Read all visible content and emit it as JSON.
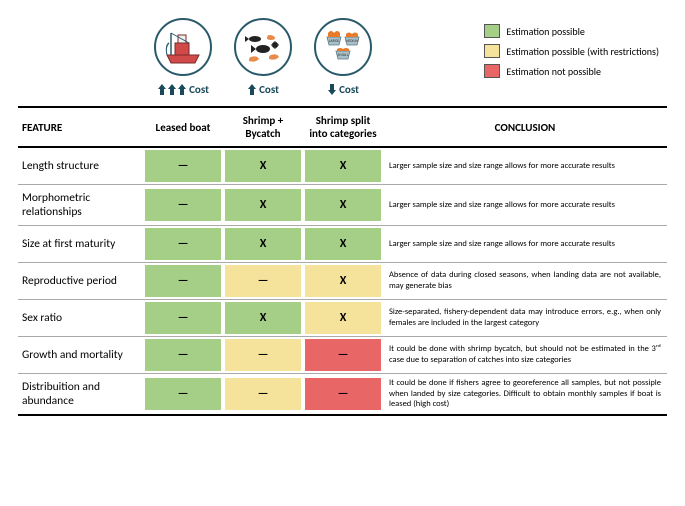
{
  "colors": {
    "green": "#a5cf86",
    "yellow": "#f6e39b",
    "red": "#e86666",
    "border": "#000000",
    "row_border": "#aaaaaa",
    "circle_border": "#2a5a6a",
    "arrow_color": "#1a4a5a",
    "boat_red": "#d14a4a",
    "shrimp_orange": "#e88a4a",
    "bycatch_black": "#222222",
    "basket_orange": "#e87a2a",
    "basket_gray": "#a9c0c8"
  },
  "legend": [
    {
      "label": "Estimation possible",
      "color": "#a5cf86"
    },
    {
      "label": "Estimation possible (with restrictions)",
      "color": "#f6e39b"
    },
    {
      "label": "Estimation not possible",
      "color": "#e86666"
    }
  ],
  "icons": {
    "boat": "leased-boat",
    "bycatch": "shrimp-bycatch",
    "categories": "shrimp-categories",
    "category_labels": [
      "LARGE",
      "MEDIUM",
      "SMALL"
    ]
  },
  "scenarios": [
    {
      "key": "leased_boat",
      "header": "Leased boat",
      "cost_arrows": 3,
      "cost_dir": "up",
      "cost_label": "Cost"
    },
    {
      "key": "shrimp_bycatch",
      "header": "Shrimp + Bycatch",
      "cost_arrows": 1,
      "cost_dir": "up",
      "cost_label": "Cost"
    },
    {
      "key": "shrimp_categories",
      "header": "Shrimp split into categories",
      "cost_arrows": 1,
      "cost_dir": "down",
      "cost_label": "Cost"
    }
  ],
  "headers": {
    "feature": "FEATURE",
    "conclusion": "CONCLUSION"
  },
  "marks": {
    "dash": "—",
    "x": "X"
  },
  "rows": [
    {
      "feature": "Length structure",
      "cells": [
        {
          "mark": "dash",
          "color": "green"
        },
        {
          "mark": "x",
          "color": "green"
        },
        {
          "mark": "x",
          "color": "green"
        }
      ],
      "conclusion": "Larger sample size and size range allows for more accurate results"
    },
    {
      "feature": "Morphometric relationships",
      "cells": [
        {
          "mark": "dash",
          "color": "green"
        },
        {
          "mark": "x",
          "color": "green"
        },
        {
          "mark": "x",
          "color": "green"
        }
      ],
      "conclusion": "Larger sample size and size range allows for more accurate results"
    },
    {
      "feature": "Size at first maturity",
      "cells": [
        {
          "mark": "dash",
          "color": "green"
        },
        {
          "mark": "x",
          "color": "green"
        },
        {
          "mark": "x",
          "color": "green"
        }
      ],
      "conclusion": "Larger sample size and size range allows for more accurate results"
    },
    {
      "feature": "Reproductive period",
      "cells": [
        {
          "mark": "dash",
          "color": "green"
        },
        {
          "mark": "dash",
          "color": "yellow"
        },
        {
          "mark": "x",
          "color": "yellow"
        }
      ],
      "conclusion": "Absence of data during closed seasons, when landing data are not available, may generate bias"
    },
    {
      "feature": "Sex ratio",
      "cells": [
        {
          "mark": "dash",
          "color": "green"
        },
        {
          "mark": "x",
          "color": "green"
        },
        {
          "mark": "x",
          "color": "yellow"
        }
      ],
      "conclusion": "Size-separated, fishery-dependent data may introduce errors, e.g., when only females are included in the largest category"
    },
    {
      "feature": "Growth and mortality",
      "cells": [
        {
          "mark": "dash",
          "color": "green"
        },
        {
          "mark": "dash",
          "color": "yellow"
        },
        {
          "mark": "dash",
          "color": "red"
        }
      ],
      "conclusion": "It could be done with shrimp bycatch, but should not be estimated in the 3ʳᵈ case due to separation of catches into size categories"
    },
    {
      "feature": "Distribuition and abundance",
      "cells": [
        {
          "mark": "dash",
          "color": "green"
        },
        {
          "mark": "dash",
          "color": "yellow"
        },
        {
          "mark": "dash",
          "color": "red"
        }
      ],
      "conclusion": "It could be done if fishers agree to georeference all samples, but not possiple when landed by size categories. Difficult to obtain monthly samples if boat is leased (high cost)"
    }
  ]
}
